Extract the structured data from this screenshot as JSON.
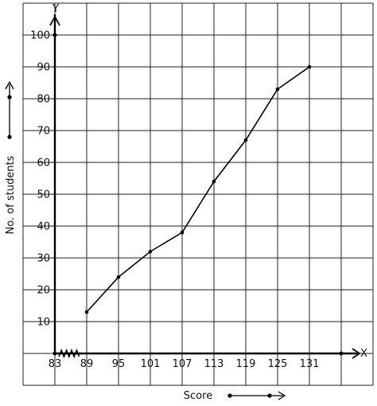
{
  "chart_data": {
    "type": "line",
    "xlabel": "Score",
    "ylabel": "No. of students",
    "x_axis_letter": "X",
    "y_axis_letter": "Y",
    "x_ticks": [
      "83",
      "89",
      "95",
      "101",
      "107",
      "113",
      "119",
      "125",
      "131"
    ],
    "y_ticks": [
      "10",
      "20",
      "30",
      "40",
      "50",
      "60",
      "70",
      "80",
      "90",
      "100"
    ],
    "x_break": true,
    "xlim": [
      77,
      137
    ],
    "ylim": [
      0,
      110
    ],
    "grid": true,
    "series": [
      {
        "x": [
          89,
          95,
          101,
          107,
          113,
          119,
          125,
          131
        ],
        "y": [
          13,
          24,
          32,
          38,
          54,
          67,
          83,
          90
        ]
      }
    ],
    "colors": {
      "line": "#000000",
      "grid": "#222222"
    }
  }
}
